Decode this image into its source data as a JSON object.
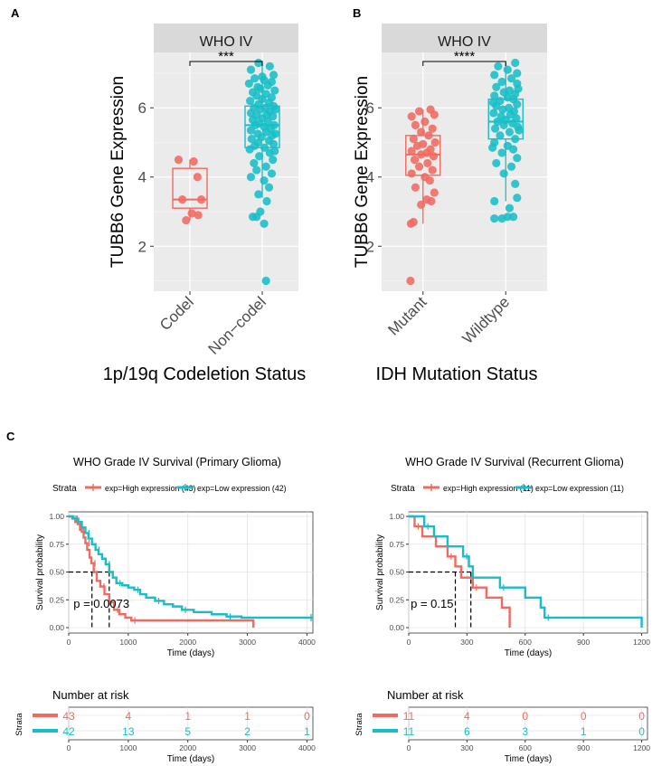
{
  "panel_letters": {
    "a": "A",
    "b": "B",
    "c": "C"
  },
  "colors": {
    "red": "#F06A60",
    "teal": "#17BEC7",
    "panel_bg": "#EBEBEB",
    "strip_bg": "#D9D9D9",
    "grid": "#FFFFFF",
    "text": "#4D4D4D"
  },
  "chart_data": [
    {
      "id": "A",
      "type": "box-jitter",
      "strip_title": "WHO IV",
      "ylabel": "TUBB6 Gene Expression",
      "xlabel": "1p/19q Codeletion Status",
      "ylim": [
        0.7,
        7.6
      ],
      "yticks": [
        2,
        4,
        6
      ],
      "categories": [
        "Codel",
        "Non−codel"
      ],
      "significance": "***",
      "boxes": [
        {
          "name": "Codel",
          "color": "red",
          "q1": 3.1,
          "median": 3.35,
          "q3": 4.25,
          "whisker_low": 2.75,
          "whisker_high": 4.5
        },
        {
          "name": "Non−codel",
          "color": "teal",
          "q1": 4.85,
          "median": 5.5,
          "q3": 6.05,
          "whisker_low": 3.4,
          "whisker_high": 7.3
        }
      ],
      "points": [
        [
          [
            4.5,
            -0.3
          ],
          [
            4.45,
            0.1
          ],
          [
            4.0,
            0.2
          ],
          [
            3.35,
            -0.2
          ],
          [
            3.35,
            0.3
          ],
          [
            2.95,
            0.05
          ],
          [
            2.75,
            -0.1
          ],
          [
            2.9,
            0.22
          ]
        ],
        [
          [
            7.3,
            -0.1
          ],
          [
            7.2,
            0.2
          ],
          [
            7.1,
            -0.3
          ],
          [
            6.95,
            0.3
          ],
          [
            6.85,
            -0.2
          ],
          [
            6.8,
            0.05
          ],
          [
            6.7,
            -0.35
          ],
          [
            6.65,
            0.15
          ],
          [
            6.55,
            -0.05
          ],
          [
            6.5,
            0.33
          ],
          [
            6.45,
            -0.25
          ],
          [
            6.4,
            0.1
          ],
          [
            6.35,
            -0.15
          ],
          [
            6.3,
            0.25
          ],
          [
            6.25,
            0
          ],
          [
            6.2,
            -0.32
          ],
          [
            6.15,
            0.18
          ],
          [
            6.1,
            -0.1
          ],
          [
            6.05,
            0.3
          ],
          [
            6.0,
            -0.22
          ],
          [
            6.0,
            0.08
          ],
          [
            5.95,
            -0.05
          ],
          [
            5.9,
            0.2
          ],
          [
            5.85,
            -0.3
          ],
          [
            5.8,
            0.12
          ],
          [
            5.78,
            -0.15
          ],
          [
            5.75,
            0.28
          ],
          [
            5.7,
            0
          ],
          [
            5.65,
            -0.25
          ],
          [
            5.6,
            0.15
          ],
          [
            5.55,
            -0.08
          ],
          [
            5.5,
            0.32
          ],
          [
            5.5,
            -0.18
          ],
          [
            5.45,
            0.05
          ],
          [
            5.4,
            0.22
          ],
          [
            5.35,
            -0.3
          ],
          [
            5.3,
            0.1
          ],
          [
            5.25,
            -0.12
          ],
          [
            5.2,
            0.26
          ],
          [
            5.15,
            -0.02
          ],
          [
            5.1,
            -0.28
          ],
          [
            5.05,
            0.18
          ],
          [
            5.0,
            -0.1
          ],
          [
            4.95,
            0.3
          ],
          [
            4.9,
            -0.2
          ],
          [
            4.85,
            0.06
          ],
          [
            4.8,
            -0.33
          ],
          [
            4.7,
            0.2
          ],
          [
            4.6,
            -0.08
          ],
          [
            4.5,
            0.28
          ],
          [
            4.4,
            -0.22
          ],
          [
            4.3,
            0.1
          ],
          [
            4.2,
            -0.15
          ],
          [
            4.1,
            0.25
          ],
          [
            4.0,
            -0.3
          ],
          [
            3.9,
            0.05
          ],
          [
            3.7,
            0.18
          ],
          [
            3.5,
            -0.1
          ],
          [
            3.3,
            0.12
          ],
          [
            3.0,
            -0.05
          ],
          [
            2.85,
            -0.25
          ],
          [
            2.85,
            -0.15
          ],
          [
            2.65,
            0.05
          ],
          [
            1.0,
            0.1
          ],
          [
            6.9,
            0.0
          ],
          [
            6.6,
            -0.12
          ],
          [
            5.95,
            0.35
          ],
          [
            5.25,
            0.35
          ],
          [
            4.75,
            0.33
          ],
          [
            6.75,
            0.25
          ]
        ]
      ]
    },
    {
      "id": "B",
      "type": "box-jitter",
      "strip_title": "WHO IV",
      "ylabel": "TUBB6 Gene Expression",
      "xlabel": "IDH Mutation Status",
      "ylim": [
        0.7,
        7.6
      ],
      "yticks": [
        2,
        4,
        6
      ],
      "categories": [
        "Mutant",
        "Wildtype"
      ],
      "significance": "****",
      "boxes": [
        {
          "name": "Mutant",
          "color": "red",
          "q1": 4.05,
          "median": 4.65,
          "q3": 5.2,
          "whisker_low": 2.65,
          "whisker_high": 5.95
        },
        {
          "name": "Wildtype",
          "color": "teal",
          "q1": 5.1,
          "median": 5.6,
          "q3": 6.25,
          "whisker_low": 3.3,
          "whisker_high": 7.3
        }
      ],
      "points": [
        [
          [
            5.95,
            0.2
          ],
          [
            5.9,
            -0.1
          ],
          [
            5.8,
            0.3
          ],
          [
            5.75,
            -0.3
          ],
          [
            5.6,
            0.05
          ],
          [
            5.5,
            -0.2
          ],
          [
            5.4,
            0.25
          ],
          [
            5.3,
            -0.05
          ],
          [
            5.2,
            0.15
          ],
          [
            5.1,
            -0.25
          ],
          [
            5.0,
            0.32
          ],
          [
            4.95,
            0.0
          ],
          [
            4.9,
            -0.15
          ],
          [
            4.8,
            0.2
          ],
          [
            4.75,
            -0.3
          ],
          [
            4.7,
            0.1
          ],
          [
            4.65,
            -0.05
          ],
          [
            4.6,
            0.28
          ],
          [
            4.5,
            -0.22
          ],
          [
            4.4,
            0.12
          ],
          [
            4.3,
            -0.1
          ],
          [
            4.2,
            0.25
          ],
          [
            4.1,
            -0.3
          ],
          [
            4.0,
            0.05
          ],
          [
            3.9,
            0.18
          ],
          [
            3.7,
            -0.2
          ],
          [
            3.55,
            0.3
          ],
          [
            3.35,
            0.1
          ],
          [
            3.3,
            0.22
          ],
          [
            2.7,
            -0.25
          ],
          [
            2.65,
            -0.32
          ],
          [
            1.0,
            -0.33
          ],
          [
            3.2,
            -0.05
          ]
        ],
        [
          [
            7.3,
            0.25
          ],
          [
            7.2,
            -0.2
          ],
          [
            7.1,
            0.05
          ],
          [
            7.0,
            0.3
          ],
          [
            6.95,
            -0.3
          ],
          [
            6.85,
            0.15
          ],
          [
            6.75,
            -0.1
          ],
          [
            6.7,
            0.3
          ],
          [
            6.6,
            -0.25
          ],
          [
            6.5,
            0.1
          ],
          [
            6.45,
            -0.05
          ],
          [
            6.4,
            0.25
          ],
          [
            6.35,
            -0.3
          ],
          [
            6.3,
            0.05
          ],
          [
            6.25,
            0.2
          ],
          [
            6.2,
            -0.15
          ],
          [
            6.1,
            0.3
          ],
          [
            6.05,
            -0.25
          ],
          [
            6.0,
            0.08
          ],
          [
            5.95,
            -0.08
          ],
          [
            5.9,
            0.22
          ],
          [
            5.85,
            -0.32
          ],
          [
            5.8,
            0.12
          ],
          [
            5.75,
            -0.12
          ],
          [
            5.7,
            0.28
          ],
          [
            5.65,
            0.0
          ],
          [
            5.6,
            -0.22
          ],
          [
            5.55,
            0.18
          ],
          [
            5.5,
            -0.05
          ],
          [
            5.45,
            0.32
          ],
          [
            5.4,
            -0.28
          ],
          [
            5.3,
            0.1
          ],
          [
            5.2,
            -0.15
          ],
          [
            5.1,
            0.25
          ],
          [
            5.0,
            -0.3
          ],
          [
            4.9,
            0.05
          ],
          [
            4.8,
            0.2
          ],
          [
            4.7,
            -0.1
          ],
          [
            4.55,
            0.3
          ],
          [
            4.4,
            -0.25
          ],
          [
            4.3,
            0.15
          ],
          [
            4.1,
            -0.05
          ],
          [
            3.8,
            0.25
          ],
          [
            3.4,
            0.3
          ],
          [
            3.3,
            -0.3
          ],
          [
            3.1,
            0.1
          ],
          [
            2.85,
            0.2
          ],
          [
            2.8,
            -0.1
          ],
          [
            2.8,
            -0.3
          ],
          [
            2.85,
            0.05
          ],
          [
            6.55,
            0.33
          ],
          [
            6.15,
            -0.33
          ],
          [
            5.35,
            0.35
          ],
          [
            4.85,
            -0.35
          ]
        ]
      ]
    },
    {
      "id": "C1",
      "type": "survival",
      "title": "WHO Grade IV Survival (Primary Glioma)",
      "legend_title": "Strata",
      "legend": [
        "exp=High expression (43)",
        "exp=Low expression (42)"
      ],
      "xlabel": "Time (days)",
      "ylabel": "Survival probability",
      "xlim": [
        0,
        4100
      ],
      "xticks": [
        0,
        1000,
        2000,
        3000,
        4000
      ],
      "yticks": [
        "0.00",
        "0.25",
        "0.50",
        "0.75",
        "1.00"
      ],
      "pvalue": "p = 0.0073",
      "medians": [
        390,
        680
      ],
      "series": [
        {
          "name": "exp=High expression",
          "color": "red",
          "steps": [
            [
              0,
              1.0
            ],
            [
              60,
              0.98
            ],
            [
              110,
              0.95
            ],
            [
              150,
              0.93
            ],
            [
              190,
              0.88
            ],
            [
              220,
              0.86
            ],
            [
              250,
              0.81
            ],
            [
              280,
              0.76
            ],
            [
              310,
              0.7
            ],
            [
              350,
              0.63
            ],
            [
              380,
              0.58
            ],
            [
              420,
              0.5
            ],
            [
              470,
              0.42
            ],
            [
              530,
              0.37
            ],
            [
              600,
              0.3
            ],
            [
              680,
              0.23
            ],
            [
              760,
              0.16
            ],
            [
              850,
              0.12
            ],
            [
              950,
              0.09
            ],
            [
              1050,
              0.065
            ],
            [
              1200,
              0.065
            ],
            [
              3100,
              0.065
            ],
            [
              3100,
              0.0
            ]
          ]
        },
        {
          "name": "exp=Low expression",
          "color": "teal",
          "steps": [
            [
              0,
              1.0
            ],
            [
              80,
              0.98
            ],
            [
              160,
              0.95
            ],
            [
              220,
              0.9
            ],
            [
              280,
              0.85
            ],
            [
              330,
              0.8
            ],
            [
              390,
              0.75
            ],
            [
              450,
              0.7
            ],
            [
              500,
              0.66
            ],
            [
              560,
              0.62
            ],
            [
              620,
              0.57
            ],
            [
              680,
              0.5
            ],
            [
              740,
              0.45
            ],
            [
              800,
              0.4
            ],
            [
              900,
              0.38
            ],
            [
              1000,
              0.36
            ],
            [
              1100,
              0.34
            ],
            [
              1200,
              0.3
            ],
            [
              1300,
              0.27
            ],
            [
              1450,
              0.24
            ],
            [
              1600,
              0.21
            ],
            [
              1750,
              0.19
            ],
            [
              1900,
              0.16
            ],
            [
              2100,
              0.14
            ],
            [
              2400,
              0.12
            ],
            [
              2650,
              0.1
            ],
            [
              2900,
              0.09
            ],
            [
              4100,
              0.09
            ]
          ]
        }
      ],
      "risk_title": "Number at risk",
      "risk_strata_label": "Strata",
      "risk_xticks": [
        0,
        1000,
        2000,
        3000,
        4000
      ],
      "risk_xlim": [
        0,
        4100
      ],
      "risk_xlabel": "Time (days)",
      "risk_rows": [
        [
          "43",
          "4",
          "1",
          "1",
          "0"
        ],
        [
          "42",
          "13",
          "5",
          "2",
          "1"
        ]
      ]
    },
    {
      "id": "C2",
      "type": "survival",
      "title": "WHO Grade IV Survival (Recurrent Glioma)",
      "legend_title": "Strata",
      "legend": [
        "exp=High expression (11)",
        "exp=Low expression (11)"
      ],
      "xlabel": "Time (days)",
      "ylabel": "Survival probability",
      "xlim": [
        0,
        1230
      ],
      "xticks": [
        0,
        300,
        600,
        900,
        1200
      ],
      "yticks": [
        "0.00",
        "0.25",
        "0.50",
        "0.75",
        "1.00"
      ],
      "pvalue": "p = 0.15",
      "medians": [
        240,
        320
      ],
      "series": [
        {
          "name": "exp=High expression",
          "color": "red",
          "steps": [
            [
              0,
              1.0
            ],
            [
              30,
              0.91
            ],
            [
              70,
              0.82
            ],
            [
              140,
              0.73
            ],
            [
              200,
              0.64
            ],
            [
              240,
              0.55
            ],
            [
              270,
              0.45
            ],
            [
              330,
              0.36
            ],
            [
              400,
              0.27
            ],
            [
              480,
              0.18
            ],
            [
              520,
              0.0
            ]
          ]
        },
        {
          "name": "exp=Low expression",
          "color": "teal",
          "steps": [
            [
              0,
              1.0
            ],
            [
              80,
              0.91
            ],
            [
              130,
              0.82
            ],
            [
              200,
              0.73
            ],
            [
              280,
              0.64
            ],
            [
              310,
              0.55
            ],
            [
              330,
              0.45
            ],
            [
              470,
              0.36
            ],
            [
              600,
              0.27
            ],
            [
              680,
              0.18
            ],
            [
              700,
              0.09
            ],
            [
              1200,
              0.09
            ],
            [
              1200,
              0.0
            ]
          ]
        }
      ],
      "risk_title": "Number at risk",
      "risk_strata_label": "Strata",
      "risk_xticks": [
        0,
        300,
        600,
        900,
        1200
      ],
      "risk_xlim": [
        0,
        1230
      ],
      "risk_xlabel": "Time (days)",
      "risk_rows": [
        [
          "11",
          "4",
          "0",
          "0",
          "0"
        ],
        [
          "11",
          "6",
          "3",
          "1",
          "0"
        ]
      ]
    }
  ]
}
